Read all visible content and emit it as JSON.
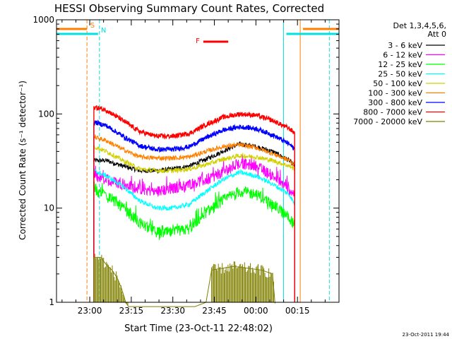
{
  "chart_data": {
    "type": "line",
    "title": "HESSI Observing Summary Count Rates, Corrected",
    "xlabel": "Start Time (23-Oct-11 22:48:02)",
    "ylabel": "Corrected Count Rate (s⁻¹ detector⁻¹)",
    "y_scale": "log",
    "ylim": [
      1,
      1000
    ],
    "xlim_minutes": [
      0,
      102
    ],
    "x_ticks": [
      {
        "label": "23:00",
        "minute": 12
      },
      {
        "label": "23:15",
        "minute": 27
      },
      {
        "label": "23:30",
        "minute": 42
      },
      {
        "label": "23:45",
        "minute": 57
      },
      {
        "label": "00:00",
        "minute": 72
      },
      {
        "label": "00:15",
        "minute": 87
      }
    ],
    "y_tick_labels": [
      {
        "label": "1",
        "value": 1
      },
      {
        "label": "10",
        "value": 10
      },
      {
        "label": "100",
        "value": 100
      },
      {
        "label": "1000",
        "value": 1000
      }
    ],
    "legend_position": "right",
    "legend_header": [
      "Det 1,3,4,5,6,",
      "Att 0"
    ],
    "timestamp": "23-Oct-2011 19:44",
    "flag_bars": [
      {
        "label": "S",
        "color": "#ff8000",
        "x_start": 0,
        "x_end": 11,
        "label_minute": 13
      },
      {
        "label": "N",
        "color": "#00e0e0",
        "x_start": 0,
        "x_end": 15,
        "label_minute": 17
      },
      {
        "label": "F",
        "color": "#ff0000",
        "x_start": 53,
        "x_end": 62,
        "label_minute": 51
      }
    ],
    "vertical_markers": [
      {
        "minute": 11,
        "color": "#ff8000",
        "style": "dashed"
      },
      {
        "minute": 15.5,
        "color": "#00e0e0",
        "style": "dashed"
      },
      {
        "minute": 82,
        "color": "#00e0e0",
        "style": "solid"
      },
      {
        "minute": 88,
        "color": "#ff8000",
        "style": "solid"
      },
      {
        "minute": 98.5,
        "color": "#00e0e0",
        "style": "dashed"
      }
    ],
    "series": [
      {
        "name": "3 - 6 keV",
        "color": "#000000",
        "x_minutes": [
          13.5,
          18,
          24,
          30,
          36,
          42,
          48,
          54,
          60,
          66,
          72,
          78,
          84,
          86
        ],
        "values": [
          32,
          32,
          28,
          25,
          25,
          26,
          28,
          33,
          40,
          48,
          45,
          40,
          32,
          28
        ]
      },
      {
        "name": "6 - 12 keV",
        "color": "#ff00ff",
        "x_minutes": [
          13.5,
          18,
          24,
          30,
          36,
          42,
          48,
          54,
          60,
          66,
          72,
          78,
          84,
          86
        ],
        "values": [
          22,
          20,
          18,
          16,
          15,
          16,
          18,
          20,
          24,
          30,
          28,
          22,
          16,
          14
        ]
      },
      {
        "name": "12 - 25 keV",
        "color": "#00ff00",
        "x_minutes": [
          13.5,
          18,
          24,
          30,
          36,
          42,
          48,
          54,
          60,
          66,
          72,
          78,
          84,
          86
        ],
        "values": [
          16,
          14,
          10,
          7,
          5.5,
          5.5,
          6,
          9,
          12,
          15,
          14,
          11,
          8,
          6.5
        ]
      },
      {
        "name": "25 - 50 keV",
        "color": "#00ffff",
        "x_minutes": [
          13.5,
          18,
          24,
          30,
          36,
          42,
          48,
          54,
          60,
          66,
          72,
          78,
          84,
          86
        ],
        "values": [
          25,
          22,
          17,
          12,
          10,
          10,
          11,
          15,
          20,
          24,
          22,
          18,
          14,
          11
        ]
      },
      {
        "name": "50 - 100 keV",
        "color": "#d0d000",
        "x_minutes": [
          13.5,
          18,
          24,
          30,
          36,
          42,
          48,
          54,
          60,
          66,
          72,
          78,
          84,
          86
        ],
        "values": [
          45,
          40,
          32,
          26,
          25,
          25,
          26,
          29,
          33,
          36,
          35,
          32,
          28,
          26
        ]
      },
      {
        "name": "100 - 300 keV",
        "color": "#ff8000",
        "x_minutes": [
          13.5,
          18,
          24,
          30,
          36,
          42,
          48,
          54,
          60,
          66,
          72,
          78,
          84,
          86
        ],
        "values": [
          57,
          52,
          42,
          35,
          34,
          34,
          35,
          40,
          45,
          47,
          44,
          38,
          32,
          29
        ]
      },
      {
        "name": "300 - 800 keV",
        "color": "#0000ff",
        "x_minutes": [
          13.5,
          18,
          24,
          30,
          36,
          42,
          48,
          54,
          60,
          66,
          72,
          78,
          84,
          86
        ],
        "values": [
          82,
          75,
          58,
          46,
          42,
          42,
          45,
          56,
          67,
          73,
          70,
          60,
          48,
          42
        ]
      },
      {
        "name": "800 - 7000 keV",
        "color": "#ff0000",
        "x_minutes": [
          13.5,
          18,
          24,
          30,
          36,
          42,
          48,
          54,
          60,
          66,
          72,
          78,
          84,
          86
        ],
        "values": [
          118,
          110,
          85,
          65,
          58,
          58,
          62,
          77,
          92,
          100,
          97,
          85,
          70,
          63
        ]
      },
      {
        "name": "7000 - 20000 keV",
        "color": "#808000",
        "x_minutes": [
          13.5,
          16,
          18,
          20,
          22,
          23.5,
          25,
          26,
          30,
          40,
          50,
          54,
          56,
          64,
          74,
          78,
          79
        ],
        "values": [
          3,
          3,
          2.5,
          2.2,
          1.8,
          1.4,
          1,
          0.9,
          0.9,
          0.9,
          0.9,
          1,
          2.2,
          2.4,
          2.2,
          2,
          0.9
        ]
      }
    ]
  }
}
